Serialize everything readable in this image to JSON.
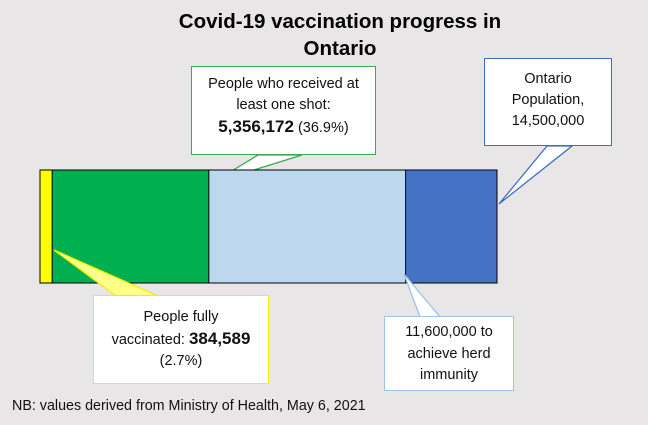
{
  "title_line1": "Covid-19 vaccination progress in",
  "title_line2": "Ontario",
  "chart_data": {
    "type": "bar",
    "orientation": "horizontal-stacked",
    "title": "Covid-19 vaccination progress in Ontario",
    "total": 14500000,
    "segments": [
      {
        "label": "People fully vaccinated",
        "value": 384589,
        "color": "#ffff00"
      },
      {
        "label": "People who received at least one shot",
        "value": 5356172,
        "color": "#00b050"
      },
      {
        "label": "11,600,000 to achieve herd immunity",
        "value": 11600000,
        "color": "#bdd7ee"
      },
      {
        "label": "Ontario Population",
        "value": 14500000,
        "color": "#4472c4"
      }
    ]
  },
  "callouts": {
    "one_shot": {
      "line1": "People who received at",
      "line2": "least one shot:",
      "value": "5,356,172",
      "pct": "(36.9%)"
    },
    "population": {
      "line1": "Ontario",
      "line2": "Population,",
      "value": "14,500,000"
    },
    "fully": {
      "line1": "People fully",
      "line2": "vaccinated:",
      "value": "384,589",
      "pct": "(2.7%)"
    },
    "herd": {
      "line1": "11,600,000 to",
      "line2": "achieve herd",
      "line3": "immunity"
    }
  },
  "footnote": "NB: values derived from Ministry of Health, May 6, 2021"
}
